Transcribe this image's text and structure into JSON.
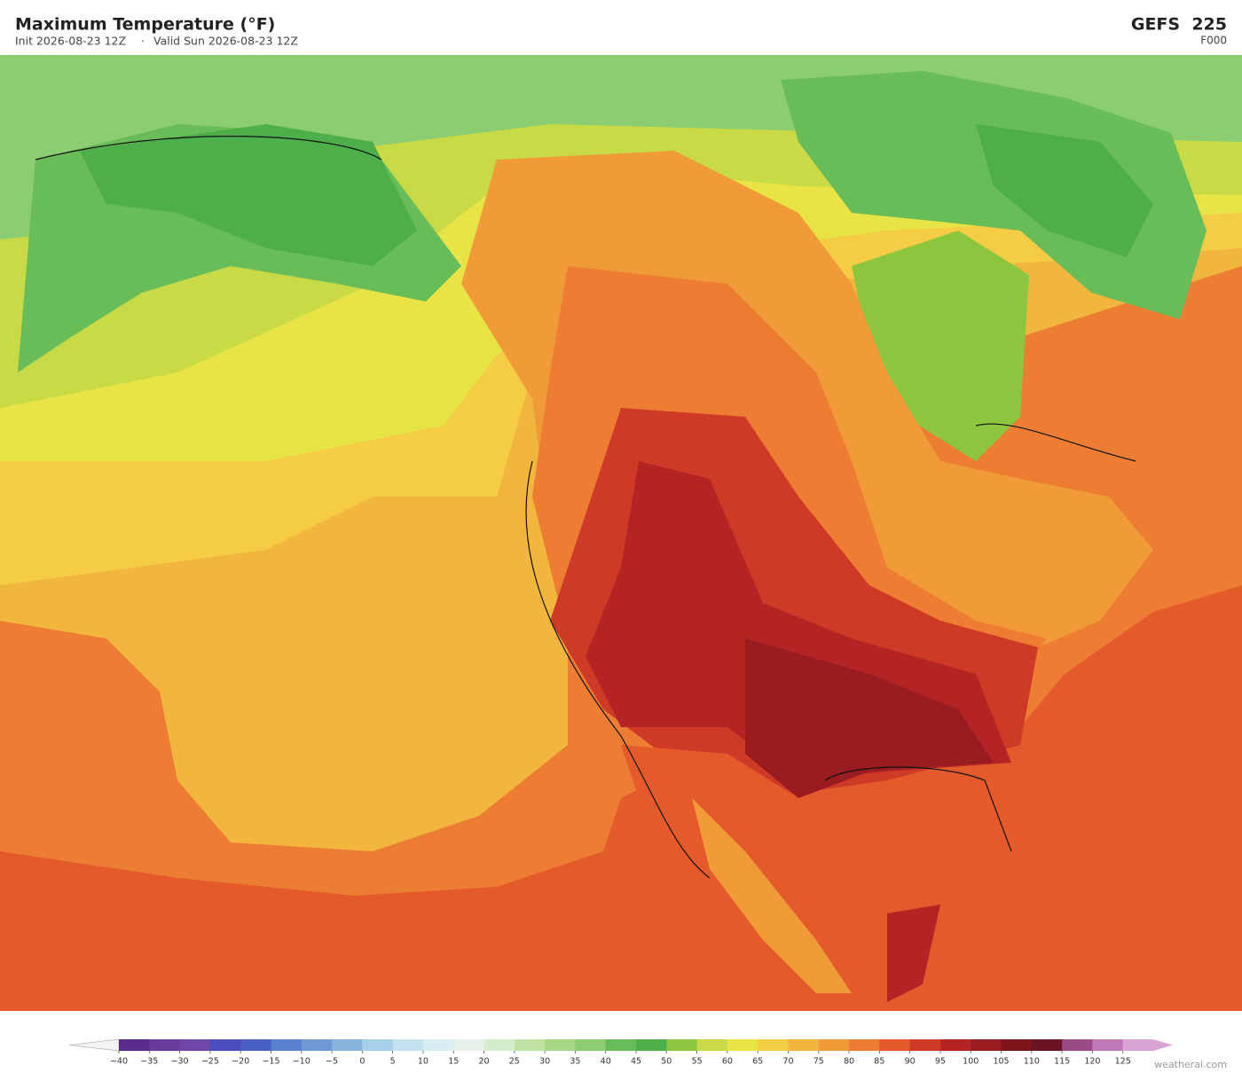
{
  "header": {
    "title": "Maximum Temperature  (°F)",
    "init": "Init 2026-08-23 12Z",
    "separator": "·",
    "valid": "Valid Sun 2026-08-23 12Z",
    "model": "GEFS  225",
    "forecast_hour": "F000"
  },
  "colorbar": {
    "range": [
      -40,
      130
    ],
    "ticks": [
      {
        "value": -40,
        "label": "−40"
      },
      {
        "value": -35,
        "label": "−35"
      },
      {
        "value": -30,
        "label": "−30"
      },
      {
        "value": -25,
        "label": "−25"
      },
      {
        "value": -20,
        "label": "−20"
      },
      {
        "value": -15,
        "label": "−15"
      },
      {
        "value": -10,
        "label": "−10"
      },
      {
        "value": -5,
        "label": "−5"
      },
      0,
      5,
      10,
      15,
      20,
      25,
      30,
      35,
      40,
      45,
      50,
      55,
      60,
      65,
      70,
      75,
      80,
      85,
      90,
      95,
      100,
      105,
      110,
      115,
      120,
      125
    ],
    "colors": [
      "#5b2d8a",
      "#6a3c9a",
      "#6f47a8",
      "#4b4cbd",
      "#4a5fc6",
      "#5a80cf",
      "#6f98d4",
      "#88b4dc",
      "#a6cfe8",
      "#c3e1ef",
      "#d8ecf3",
      "#e4f2ea",
      "#d6edcc",
      "#c0e2a2",
      "#a6d786",
      "#8ccd72",
      "#69bd58",
      "#4caf4a",
      "#8cc63f",
      "#c8da45",
      "#e9e446",
      "#f4cd45",
      "#f2b63f",
      "#f09a38",
      "#ec7d33",
      "#e45a2b",
      "#cf3a26",
      "#b52424",
      "#981c20",
      "#7e141c",
      "#6a1424",
      "#9c4a86",
      "#c07aba",
      "#d9a5d4"
    ],
    "under_color": "#f4f4f4",
    "over_color": "#d9a5d4"
  },
  "footer": {
    "credit": "weatherai.com"
  }
}
